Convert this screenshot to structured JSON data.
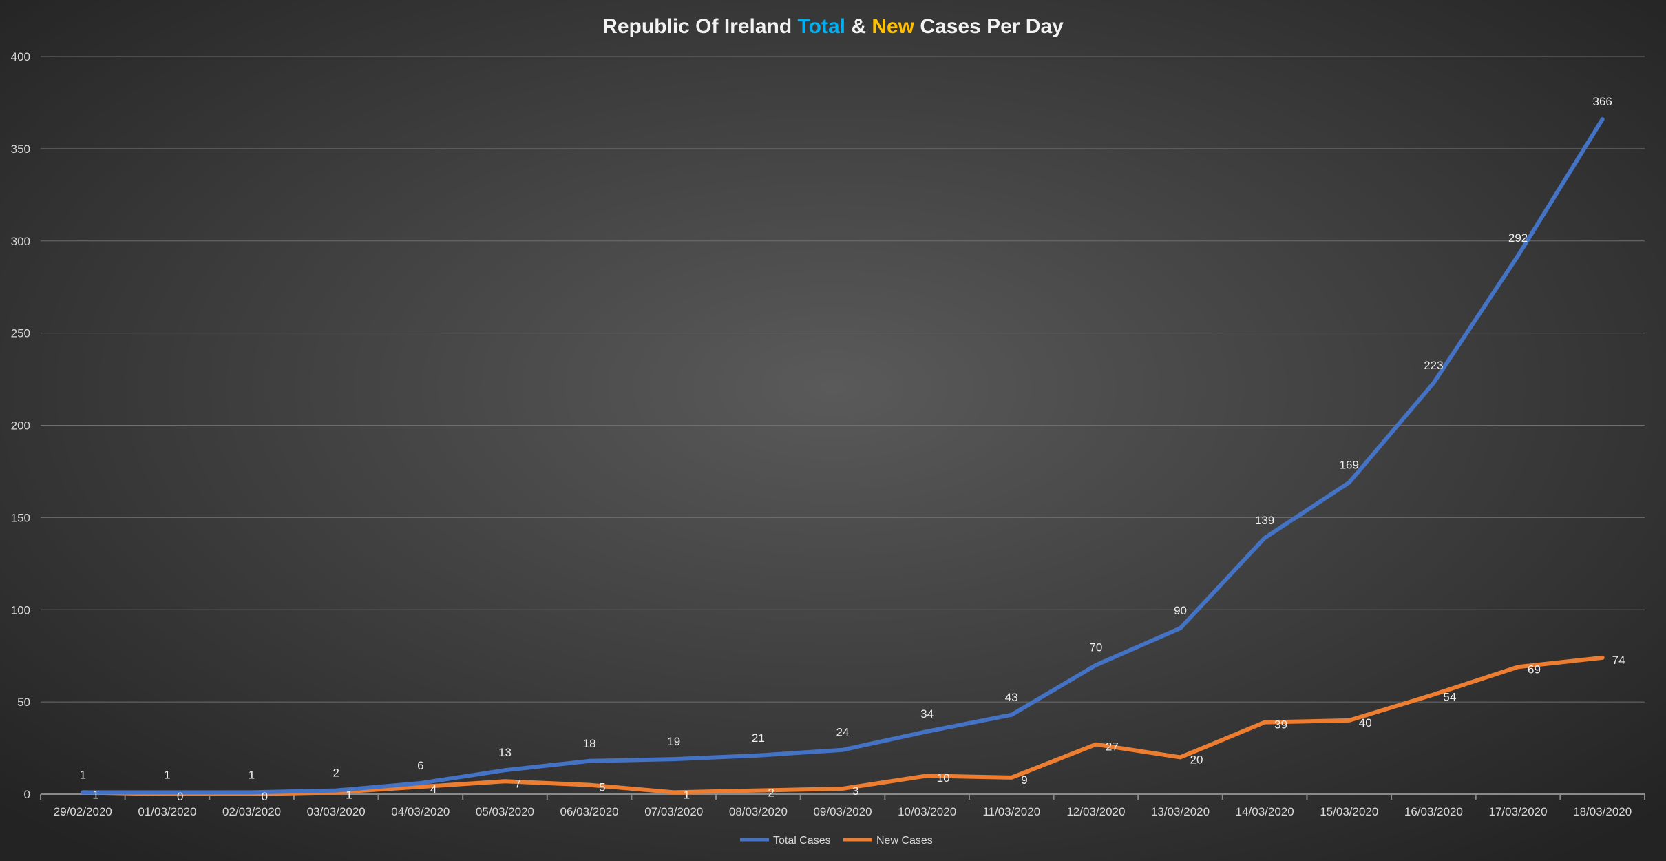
{
  "chart_data": {
    "type": "line",
    "title_parts": [
      {
        "text": "Republic Of Ireland ",
        "color": "#f2f2f2"
      },
      {
        "text": "Total",
        "color": "#00b0f0"
      },
      {
        "text": " & ",
        "color": "#f2f2f2"
      },
      {
        "text": "New",
        "color": "#ffc000"
      },
      {
        "text": " Cases Per Day",
        "color": "#f2f2f2"
      }
    ],
    "categories": [
      "29/02/2020",
      "01/03/2020",
      "02/03/2020",
      "03/03/2020",
      "04/03/2020",
      "05/03/2020",
      "06/03/2020",
      "07/03/2020",
      "08/03/2020",
      "09/03/2020",
      "10/03/2020",
      "11/03/2020",
      "12/03/2020",
      "13/03/2020",
      "14/03/2020",
      "15/03/2020",
      "16/03/2020",
      "17/03/2020",
      "18/03/2020"
    ],
    "series": [
      {
        "name": "Total Cases",
        "color": "#4472c4",
        "values": [
          1,
          1,
          1,
          2,
          6,
          13,
          18,
          19,
          21,
          24,
          34,
          43,
          70,
          90,
          139,
          169,
          223,
          292,
          366
        ]
      },
      {
        "name": "New Cases",
        "color": "#ed7d31",
        "values": [
          1,
          0,
          0,
          1,
          4,
          7,
          5,
          1,
          2,
          3,
          10,
          9,
          27,
          20,
          39,
          40,
          54,
          69,
          74
        ]
      }
    ],
    "ylim": [
      0,
      400
    ],
    "yticks": [
      0,
      50,
      100,
      150,
      200,
      250,
      300,
      350,
      400
    ],
    "grid": true,
    "legend": "bottom",
    "xlabel": "",
    "ylabel": ""
  }
}
